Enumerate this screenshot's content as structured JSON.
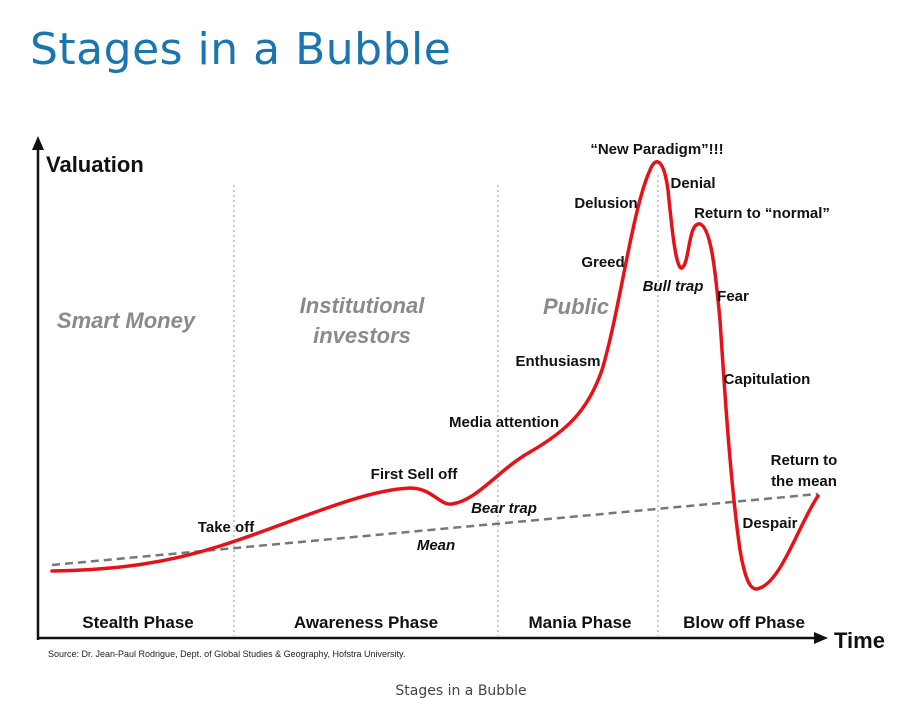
{
  "title": "Stages in a Bubble",
  "caption": "Stages in a Bubble",
  "source": "Source: Dr. Jean-Paul Rodrigue, Dept. of Global Studies & Geography, Hofstra University.",
  "axes": {
    "y_label": "Valuation",
    "x_label": "Time"
  },
  "zones": {
    "smart_money": "Smart Money",
    "institutional_1": "Institutional",
    "institutional_2": "investors",
    "public": "Public"
  },
  "phases": {
    "stealth": "Stealth Phase",
    "awareness": "Awareness Phase",
    "mania": "Mania Phase",
    "blowoff": "Blow off Phase"
  },
  "stages": {
    "take_off": "Take off",
    "first_sell_off": "First Sell off",
    "bear_trap": "Bear trap",
    "mean": "Mean",
    "media_attention": "Media attention",
    "enthusiasm": "Enthusiasm",
    "greed": "Greed",
    "delusion": "Delusion",
    "new_paradigm": "“New Paradigm”!!!",
    "denial": "Denial",
    "bull_trap": "Bull trap",
    "return_to_normal": "Return to “normal”",
    "fear": "Fear",
    "capitulation": "Capitulation",
    "despair": "Despair",
    "return_to_mean_1": "Return to",
    "return_to_mean_2": "the mean"
  },
  "colors": {
    "title": "#1b75ae",
    "curve": "#e4131a",
    "mean_line": "#777777",
    "zone_text": "#8a8a8a",
    "divider": "#bbbbbb"
  }
}
